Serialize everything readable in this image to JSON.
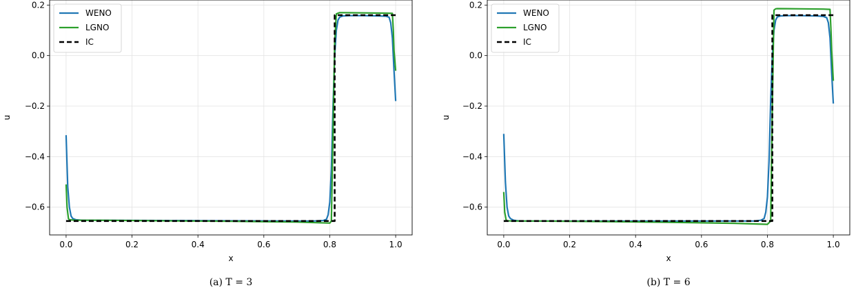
{
  "chart_data": [
    {
      "type": "line",
      "caption": "(a) T = 3",
      "xlabel": "x",
      "ylabel": "u",
      "xlim": [
        -0.05,
        1.05
      ],
      "ylim": [
        -0.71,
        0.22
      ],
      "xticks": [
        "0.0",
        "0.2",
        "0.4",
        "0.6",
        "0.8",
        "1.0"
      ],
      "yticks": [
        "−0.6",
        "−0.4",
        "−0.2",
        "0.0",
        "0.2"
      ],
      "grid": true,
      "legend_position": "top-left",
      "series": [
        {
          "name": "WENO",
          "color": "#1f77b4",
          "style": "solid",
          "x": [
            0.0,
            0.005,
            0.01,
            0.015,
            0.02,
            0.03,
            0.05,
            0.1,
            0.3,
            0.5,
            0.7,
            0.75,
            0.78,
            0.79,
            0.795,
            0.8,
            0.805,
            0.81,
            0.815,
            0.82,
            0.825,
            0.83,
            0.84,
            0.86,
            0.9,
            0.95,
            0.97,
            0.98,
            0.985,
            0.99,
            0.995,
            1.0
          ],
          "y": [
            -0.315,
            -0.52,
            -0.6,
            -0.635,
            -0.645,
            -0.65,
            -0.652,
            -0.652,
            -0.653,
            -0.654,
            -0.655,
            -0.655,
            -0.653,
            -0.648,
            -0.63,
            -0.58,
            -0.45,
            -0.2,
            0.0,
            0.1,
            0.14,
            0.152,
            0.157,
            0.158,
            0.158,
            0.157,
            0.156,
            0.152,
            0.13,
            0.07,
            -0.06,
            -0.18
          ]
        },
        {
          "name": "LGNO",
          "color": "#2ca02c",
          "style": "solid",
          "x": [
            0.0,
            0.003,
            0.007,
            0.01,
            0.03,
            0.1,
            0.3,
            0.5,
            0.7,
            0.8,
            0.805,
            0.81,
            0.815,
            0.82,
            0.83,
            0.9,
            0.97,
            0.99,
            0.993,
            0.995,
            1.0
          ],
          "y": [
            -0.51,
            -0.6,
            -0.645,
            -0.65,
            -0.652,
            -0.652,
            -0.654,
            -0.656,
            -0.659,
            -0.663,
            -0.655,
            -0.3,
            0.05,
            0.165,
            0.17,
            0.169,
            0.168,
            0.167,
            0.1,
            0.02,
            -0.06
          ]
        },
        {
          "name": "IC",
          "color": "#000000",
          "style": "dashed",
          "x": [
            0.0,
            0.815,
            0.815,
            1.0
          ],
          "y": [
            -0.655,
            -0.655,
            0.16,
            0.16
          ]
        }
      ]
    },
    {
      "type": "line",
      "caption": "(b) T = 6",
      "xlabel": "x",
      "ylabel": "u",
      "xlim": [
        -0.05,
        1.05
      ],
      "ylim": [
        -0.71,
        0.22
      ],
      "xticks": [
        "0.0",
        "0.2",
        "0.4",
        "0.6",
        "0.8",
        "1.0"
      ],
      "yticks": [
        "−0.6",
        "−0.4",
        "−0.2",
        "0.0",
        "0.2"
      ],
      "grid": true,
      "legend_position": "top-left",
      "series": [
        {
          "name": "WENO",
          "color": "#1f77b4",
          "style": "solid",
          "x": [
            0.0,
            0.005,
            0.01,
            0.015,
            0.02,
            0.03,
            0.05,
            0.1,
            0.3,
            0.5,
            0.7,
            0.76,
            0.78,
            0.79,
            0.795,
            0.8,
            0.805,
            0.81,
            0.815,
            0.82,
            0.825,
            0.83,
            0.84,
            0.86,
            0.9,
            0.95,
            0.97,
            0.98,
            0.985,
            0.99,
            0.995,
            1.0
          ],
          "y": [
            -0.31,
            -0.5,
            -0.6,
            -0.635,
            -0.645,
            -0.652,
            -0.655,
            -0.655,
            -0.655,
            -0.655,
            -0.655,
            -0.655,
            -0.652,
            -0.645,
            -0.62,
            -0.56,
            -0.42,
            -0.18,
            0.0,
            0.1,
            0.14,
            0.153,
            0.157,
            0.158,
            0.158,
            0.157,
            0.155,
            0.15,
            0.13,
            0.07,
            -0.07,
            -0.19
          ]
        },
        {
          "name": "LGNO",
          "color": "#2ca02c",
          "style": "solid",
          "x": [
            0.0,
            0.003,
            0.007,
            0.01,
            0.03,
            0.1,
            0.3,
            0.5,
            0.7,
            0.8,
            0.81,
            0.815,
            0.82,
            0.825,
            0.83,
            0.9,
            0.97,
            0.99,
            0.993,
            0.995,
            1.0
          ],
          "y": [
            -0.54,
            -0.62,
            -0.65,
            -0.654,
            -0.655,
            -0.655,
            -0.657,
            -0.66,
            -0.664,
            -0.668,
            -0.655,
            -0.2,
            0.18,
            0.185,
            0.186,
            0.185,
            0.184,
            0.183,
            0.1,
            0.02,
            -0.1
          ]
        },
        {
          "name": "IC",
          "color": "#000000",
          "style": "dashed",
          "x": [
            0.0,
            0.815,
            0.815,
            1.0
          ],
          "y": [
            -0.655,
            -0.655,
            0.16,
            0.16
          ]
        }
      ]
    }
  ]
}
